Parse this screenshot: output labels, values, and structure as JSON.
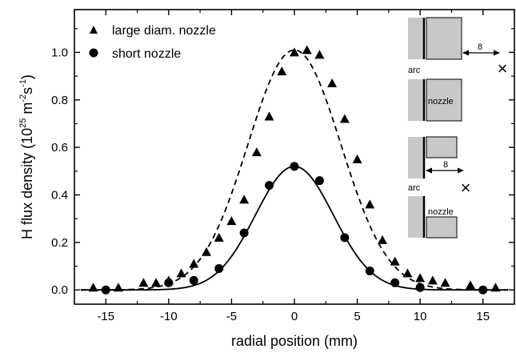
{
  "chart_data": {
    "type": "scatter",
    "xlabel": "radial position (mm)",
    "ylabel_main": "H flux density (10",
    "ylabel_exp1": "25",
    "ylabel_mid": " m",
    "ylabel_exp2": "-2",
    "ylabel_s": "s",
    "ylabel_exp3": "-1",
    "ylabel_end": ")",
    "xlim": [
      -17.5,
      17.5
    ],
    "ylim": [
      -0.06,
      1.18
    ],
    "x_ticks": [
      -15,
      -10,
      -5,
      0,
      5,
      10,
      15
    ],
    "y_ticks": [
      0.0,
      0.2,
      0.4,
      0.6,
      0.8,
      1.0
    ],
    "x_tick_labels": [
      "-15",
      "-10",
      "-5",
      "0",
      "5",
      "10",
      "15"
    ],
    "y_tick_labels": [
      "0.0",
      "0.2",
      "0.4",
      "0.6",
      "0.8",
      "1.0"
    ],
    "legend_position": "top-left",
    "series": [
      {
        "name": "large diam. nozzle",
        "marker": "triangle",
        "fit_line": "dashed",
        "fit_amplitude": 1.01,
        "fit_sigma": 3.7,
        "x": [
          -16,
          -14,
          -12,
          -11,
          -10,
          -9,
          -8,
          -7,
          -6,
          -5,
          -4,
          -3,
          -2,
          -1,
          0,
          1,
          2,
          3,
          4,
          5,
          6,
          7,
          8,
          9,
          10,
          11,
          12,
          14,
          16
        ],
        "y": [
          0.01,
          0.01,
          0.03,
          0.03,
          0.04,
          0.07,
          0.11,
          0.16,
          0.22,
          0.29,
          0.38,
          0.58,
          0.73,
          0.92,
          1.0,
          1.01,
          0.99,
          0.87,
          0.72,
          0.55,
          0.36,
          0.21,
          0.12,
          0.07,
          0.05,
          0.04,
          0.03,
          0.02,
          0.01
        ]
      },
      {
        "name": "short nozzle",
        "marker": "circle",
        "fit_line": "solid",
        "fit_amplitude": 0.52,
        "fit_sigma": 3.1,
        "x": [
          -15,
          -10,
          -8,
          -6,
          -4,
          -2,
          0,
          2,
          4,
          6,
          8,
          10,
          15
        ],
        "y": [
          0.0,
          0.03,
          0.04,
          0.09,
          0.24,
          0.44,
          0.52,
          0.46,
          0.22,
          0.08,
          0.03,
          0.01,
          0.0
        ]
      }
    ]
  },
  "inset": {
    "top_arc_label": "arc",
    "top_nozzle_label": "nozzle",
    "top_distance_label": "8",
    "bottom_arc_label": "arc",
    "bottom_nozzle_label": "nozzle",
    "bottom_distance_label": "8",
    "marker_symbol": "×"
  },
  "colors": {
    "ink": "#000000",
    "nozzle_fill": "#c8c8c8"
  }
}
